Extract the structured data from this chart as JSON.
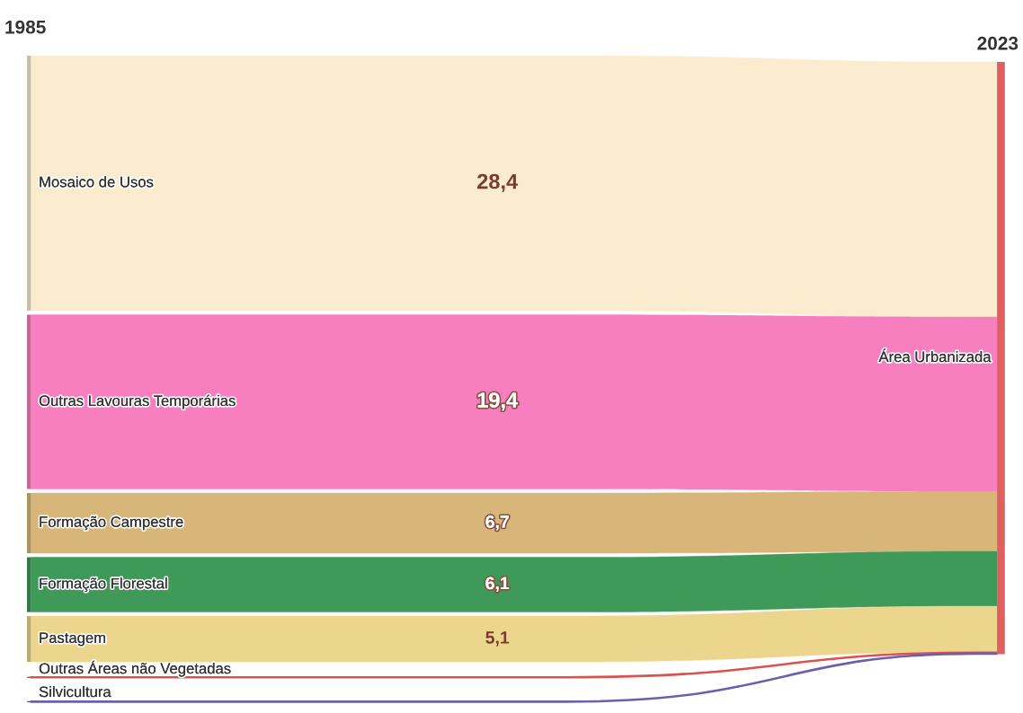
{
  "chart_data": {
    "type": "other",
    "categories": [
      "Mosaico de Usos",
      "Outras Lavouras Temporárias",
      "Formação Campestre",
      "Formação Florestal",
      "Pastagem",
      "Outras Áreas não Vegetadas",
      "Silvicultura"
    ],
    "colors": [
      "#fbecd0",
      "#f77fbf",
      "#d8b67a",
      "#3f9a5a",
      "#ecd68d",
      "#d9534f",
      "#6b5fb0"
    ],
    "values": [
      28.4,
      19.4,
      6.7,
      6.1,
      5.1,
      null,
      null
    ],
    "value_labels": [
      "28,4",
      "19,4",
      "6,7",
      "6,1",
      "5,1",
      null,
      null
    ],
    "color": "#e06060",
    "annotations": [
      "1985",
      "2023",
      "Área Urbanizada"
    ]
  }
}
